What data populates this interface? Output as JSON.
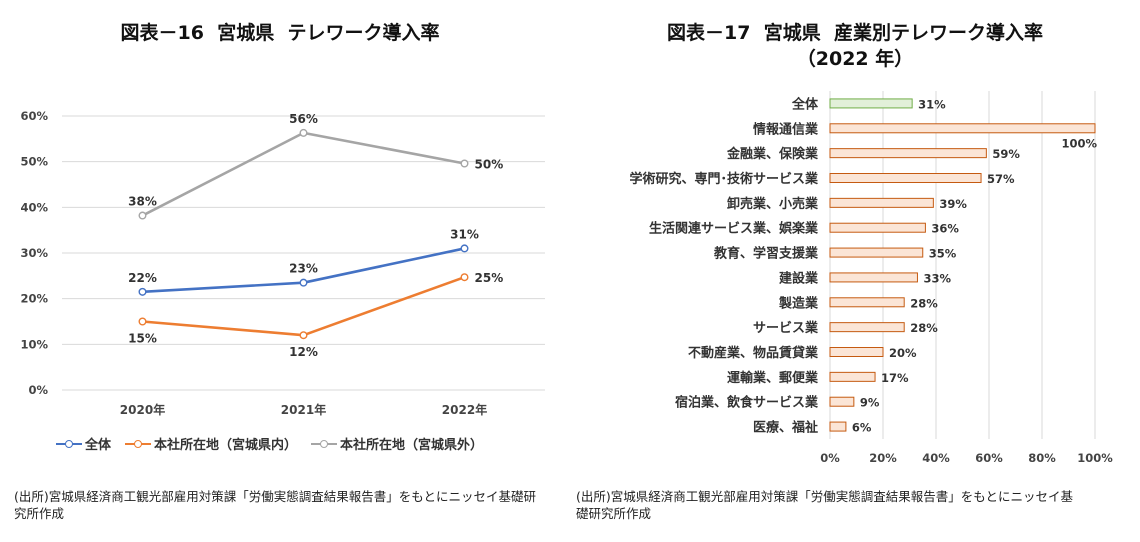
{
  "left": {
    "title": "図表－16  宮城県  テレワーク導入率",
    "source": "(出所)宮城県経済商工観光部雇用対策課「労働実態調査結果報告書」をもとにニッセイ基礎研究所作成",
    "chart_data": {
      "type": "line",
      "categories": [
        "2020年",
        "2021年",
        "2022年"
      ],
      "ylim": [
        0,
        60
      ],
      "yticks": [
        "0%",
        "10%",
        "20%",
        "30%",
        "40%",
        "50%",
        "60%"
      ],
      "series": [
        {
          "name": "全体",
          "color": "#4472C4",
          "values": [
            21.5,
            23.5,
            31
          ],
          "labels": [
            "22%",
            "23%",
            "31%"
          ],
          "label_pos": [
            "above",
            "above",
            "above"
          ]
        },
        {
          "name": "本社所在地（宮城県内）",
          "color": "#ED7D31",
          "values": [
            15,
            12,
            24.7
          ],
          "labels": [
            "15%",
            "12%",
            "25%"
          ],
          "label_pos": [
            "below",
            "below",
            "right"
          ]
        },
        {
          "name": "本社所在地（宮城県外）",
          "color": "#A5A5A5",
          "values": [
            38.2,
            56.3,
            49.6
          ],
          "labels": [
            "38%",
            "56%",
            "50%"
          ],
          "label_pos": [
            "above",
            "above",
            "right"
          ]
        }
      ]
    }
  },
  "right": {
    "title_line1": "図表－17  宮城県  産業別テレワーク導入率",
    "title_line2": "（2022 年）",
    "source": "(出所)宮城県経済商工観光部雇用対策課「労働実態調査結果報告書」をもとにニッセイ基礎研究所作成",
    "chart_data": {
      "type": "bar",
      "orientation": "horizontal",
      "xlim": [
        0,
        100
      ],
      "xticks": [
        "0%",
        "20%",
        "40%",
        "60%",
        "80%",
        "100%"
      ],
      "categories": [
        "全体",
        "情報通信業",
        "金融業、保険業",
        "学術研究、専門･技術サービス業",
        "卸売業、小売業",
        "生活関連サービス業、娯楽業",
        "教育、学習支援業",
        "建設業",
        "製造業",
        "サービス業",
        "不動産業、物品賃貸業",
        "運輸業、郵便業",
        "宿泊業、飲食サービス業",
        "医療、福祉"
      ],
      "values": [
        31,
        100,
        59,
        57,
        39,
        36,
        35,
        33,
        28,
        28,
        20,
        17,
        9,
        6
      ],
      "labels": [
        "31%",
        "100%",
        "59%",
        "57%",
        "39%",
        "36%",
        "35%",
        "33%",
        "28%",
        "28%",
        "20%",
        "17%",
        "9%",
        "6%"
      ],
      "highlight_color": "#E2F0D9",
      "highlight_border": "#70AD47",
      "bar_color": "#FBE5D6",
      "bar_border": "#C55A11"
    }
  }
}
